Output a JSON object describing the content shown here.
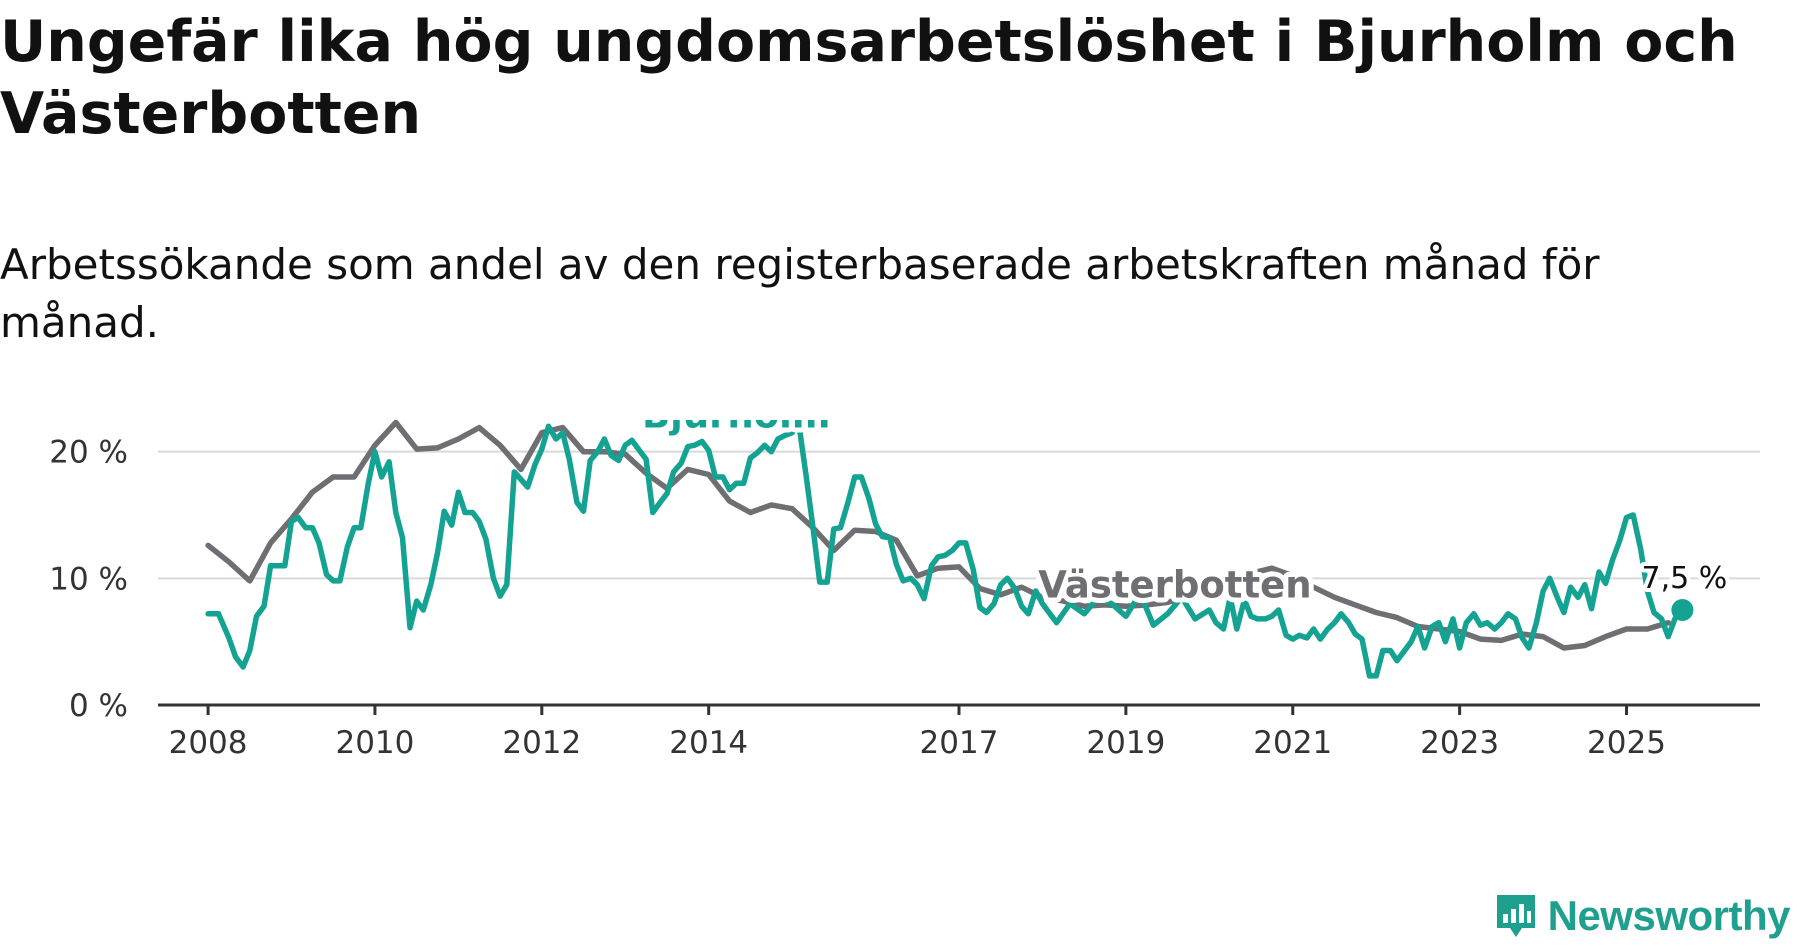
{
  "title": "Ungefär lika hög ungdomsarbetslöshet i Bjurholm och Västerbotten",
  "subtitle": "Arbetssökande som andel av den registerbaserade arbetskraften månad för månad.",
  "brand": {
    "name": "Newsworthy",
    "color": "#1fa08e",
    "icon": "bar-chart-bubble-icon"
  },
  "chart_data": {
    "type": "line",
    "grid": "horizontal",
    "xlim": [
      2007.4,
      2026.6
    ],
    "ylim": [
      0,
      22.5
    ],
    "y_ticks": [
      {
        "value": 0,
        "label": "0 %"
      },
      {
        "value": 10,
        "label": "10 %"
      },
      {
        "value": 20,
        "label": "20 %"
      }
    ],
    "x_ticks": [
      {
        "value": 2008,
        "label": "2008"
      },
      {
        "value": 2010,
        "label": "2010"
      },
      {
        "value": 2012,
        "label": "2012"
      },
      {
        "value": 2014,
        "label": "2014"
      },
      {
        "value": 2017,
        "label": "2017"
      },
      {
        "value": 2019,
        "label": "2019"
      },
      {
        "value": 2021,
        "label": "2021"
      },
      {
        "value": 2023,
        "label": "2023"
      },
      {
        "value": 2025,
        "label": "2025"
      }
    ],
    "end_label": "7,5 %",
    "series": [
      {
        "name": "Västerbotten",
        "color": "#6e6e73",
        "label_x": 2017.95,
        "label_y": 8.5,
        "points": [
          [
            2008.0,
            12.6
          ],
          [
            2008.25,
            11.3
          ],
          [
            2008.5,
            9.8
          ],
          [
            2008.75,
            12.8
          ],
          [
            2009.0,
            14.7
          ],
          [
            2009.25,
            16.8
          ],
          [
            2009.5,
            18.0
          ],
          [
            2009.75,
            18.0
          ],
          [
            2010.0,
            20.5
          ],
          [
            2010.25,
            22.3
          ],
          [
            2010.5,
            20.2
          ],
          [
            2010.75,
            20.3
          ],
          [
            2011.0,
            21.0
          ],
          [
            2011.25,
            21.9
          ],
          [
            2011.5,
            20.5
          ],
          [
            2011.75,
            18.6
          ],
          [
            2012.0,
            21.5
          ],
          [
            2012.25,
            21.9
          ],
          [
            2012.5,
            20.0
          ],
          [
            2012.75,
            20.0
          ],
          [
            2013.0,
            19.8
          ],
          [
            2013.25,
            18.3
          ],
          [
            2013.5,
            17.1
          ],
          [
            2013.75,
            18.6
          ],
          [
            2014.0,
            18.2
          ],
          [
            2014.25,
            16.1
          ],
          [
            2014.5,
            15.2
          ],
          [
            2014.75,
            15.8
          ],
          [
            2015.0,
            15.5
          ],
          [
            2015.25,
            14.0
          ],
          [
            2015.5,
            12.2
          ],
          [
            2015.75,
            13.8
          ],
          [
            2016.0,
            13.7
          ],
          [
            2016.25,
            13.0
          ],
          [
            2016.5,
            10.2
          ],
          [
            2016.75,
            10.8
          ],
          [
            2017.0,
            10.9
          ],
          [
            2017.25,
            9.2
          ],
          [
            2017.5,
            8.7
          ],
          [
            2017.75,
            9.3
          ],
          [
            2018.0,
            8.5
          ],
          [
            2018.25,
            8.2
          ],
          [
            2018.5,
            7.8
          ],
          [
            2018.75,
            7.9
          ],
          [
            2019.0,
            7.8
          ],
          [
            2019.25,
            7.9
          ],
          [
            2019.5,
            8.1
          ],
          [
            2019.75,
            8.6
          ],
          [
            2020.0,
            8.8
          ],
          [
            2020.25,
            9.3
          ],
          [
            2020.5,
            10.4
          ],
          [
            2020.75,
            10.8
          ],
          [
            2021.0,
            10.2
          ],
          [
            2021.25,
            9.3
          ],
          [
            2021.5,
            8.5
          ],
          [
            2021.75,
            7.9
          ],
          [
            2022.0,
            7.3
          ],
          [
            2022.25,
            6.9
          ],
          [
            2022.5,
            6.2
          ],
          [
            2022.75,
            6.0
          ],
          [
            2023.0,
            5.8
          ],
          [
            2023.25,
            5.2
          ],
          [
            2023.5,
            5.1
          ],
          [
            2023.75,
            5.6
          ],
          [
            2024.0,
            5.4
          ],
          [
            2024.25,
            4.5
          ],
          [
            2024.5,
            4.7
          ],
          [
            2024.75,
            5.4
          ],
          [
            2025.0,
            6.0
          ],
          [
            2025.25,
            6.0
          ],
          [
            2025.5,
            6.5
          ]
        ]
      },
      {
        "name": "Bjurholm",
        "color": "#14a392",
        "label_x": 2013.2,
        "label_y": 21.9,
        "end_dot": true,
        "points": [
          [
            2008.0,
            7.2
          ],
          [
            2008.125,
            7.2
          ],
          [
            2008.25,
            5.3
          ],
          [
            2008.33,
            3.8
          ],
          [
            2008.42,
            3.0
          ],
          [
            2008.5,
            4.3
          ],
          [
            2008.58,
            7.0
          ],
          [
            2008.67,
            7.8
          ],
          [
            2008.75,
            11.0
          ],
          [
            2008.92,
            11.0
          ],
          [
            2009.0,
            14.5
          ],
          [
            2009.08,
            14.8
          ],
          [
            2009.17,
            14.0
          ],
          [
            2009.25,
            14.0
          ],
          [
            2009.33,
            12.8
          ],
          [
            2009.42,
            10.3
          ],
          [
            2009.5,
            9.8
          ],
          [
            2009.58,
            9.8
          ],
          [
            2009.67,
            12.5
          ],
          [
            2009.75,
            14.0
          ],
          [
            2009.83,
            14.0
          ],
          [
            2009.92,
            17.5
          ],
          [
            2010.0,
            20.0
          ],
          [
            2010.08,
            18.0
          ],
          [
            2010.17,
            19.2
          ],
          [
            2010.25,
            15.2
          ],
          [
            2010.33,
            13.2
          ],
          [
            2010.42,
            6.1
          ],
          [
            2010.5,
            8.2
          ],
          [
            2010.58,
            7.5
          ],
          [
            2010.67,
            9.5
          ],
          [
            2010.75,
            12.0
          ],
          [
            2010.83,
            15.3
          ],
          [
            2010.92,
            14.2
          ],
          [
            2011.0,
            16.8
          ],
          [
            2011.08,
            15.2
          ],
          [
            2011.17,
            15.2
          ],
          [
            2011.25,
            14.5
          ],
          [
            2011.33,
            13.1
          ],
          [
            2011.42,
            10.0
          ],
          [
            2011.5,
            8.6
          ],
          [
            2011.58,
            9.5
          ],
          [
            2011.67,
            18.4
          ],
          [
            2011.75,
            17.8
          ],
          [
            2011.83,
            17.2
          ],
          [
            2011.92,
            19.0
          ],
          [
            2012.0,
            20.2
          ],
          [
            2012.08,
            22.0
          ],
          [
            2012.17,
            21.0
          ],
          [
            2012.25,
            21.5
          ],
          [
            2012.33,
            19.4
          ],
          [
            2012.42,
            16.0
          ],
          [
            2012.5,
            15.3
          ],
          [
            2012.58,
            19.3
          ],
          [
            2012.67,
            20.0
          ],
          [
            2012.75,
            21.0
          ],
          [
            2012.83,
            19.7
          ],
          [
            2012.92,
            19.3
          ],
          [
            2013.0,
            20.5
          ],
          [
            2013.08,
            20.9
          ],
          [
            2013.17,
            20.1
          ],
          [
            2013.25,
            19.4
          ],
          [
            2013.33,
            15.2
          ],
          [
            2013.42,
            16.0
          ],
          [
            2013.5,
            16.7
          ],
          [
            2013.58,
            18.4
          ],
          [
            2013.67,
            19.1
          ],
          [
            2013.75,
            20.4
          ],
          [
            2013.83,
            20.5
          ],
          [
            2013.92,
            20.8
          ],
          [
            2014.0,
            20.1
          ],
          [
            2014.08,
            18.0
          ],
          [
            2014.17,
            18.0
          ],
          [
            2014.25,
            17.0
          ],
          [
            2014.33,
            17.5
          ],
          [
            2014.42,
            17.5
          ],
          [
            2014.5,
            19.5
          ],
          [
            2014.58,
            19.9
          ],
          [
            2014.67,
            20.5
          ],
          [
            2014.75,
            20.0
          ],
          [
            2014.83,
            21.0
          ],
          [
            2014.92,
            21.3
          ],
          [
            2015.0,
            21.5
          ],
          [
            2015.08,
            22.2
          ],
          [
            2015.17,
            18.0
          ],
          [
            2015.25,
            14.0
          ],
          [
            2015.33,
            9.7
          ],
          [
            2015.42,
            9.7
          ],
          [
            2015.5,
            13.9
          ],
          [
            2015.58,
            14.0
          ],
          [
            2015.67,
            16.0
          ],
          [
            2015.75,
            18.0
          ],
          [
            2015.83,
            18.0
          ],
          [
            2015.92,
            16.3
          ],
          [
            2016.0,
            14.3
          ],
          [
            2016.08,
            13.3
          ],
          [
            2016.17,
            13.2
          ],
          [
            2016.25,
            11.1
          ],
          [
            2016.33,
            9.8
          ],
          [
            2016.42,
            10.0
          ],
          [
            2016.5,
            9.5
          ],
          [
            2016.58,
            8.4
          ],
          [
            2016.67,
            11.0
          ],
          [
            2016.75,
            11.7
          ],
          [
            2016.83,
            11.8
          ],
          [
            2016.92,
            12.2
          ],
          [
            2017.0,
            12.8
          ],
          [
            2017.08,
            12.8
          ],
          [
            2017.17,
            10.7
          ],
          [
            2017.25,
            7.7
          ],
          [
            2017.33,
            7.3
          ],
          [
            2017.42,
            8.0
          ],
          [
            2017.5,
            9.5
          ],
          [
            2017.58,
            10.0
          ],
          [
            2017.67,
            9.2
          ],
          [
            2017.75,
            7.8
          ],
          [
            2017.83,
            7.2
          ],
          [
            2017.92,
            9.0
          ],
          [
            2018.0,
            8.0
          ],
          [
            2018.17,
            6.5
          ],
          [
            2018.33,
            8.0
          ],
          [
            2018.5,
            7.2
          ],
          [
            2018.67,
            8.5
          ],
          [
            2018.83,
            8.0
          ],
          [
            2019.0,
            7.0
          ],
          [
            2019.17,
            8.8
          ],
          [
            2019.33,
            6.3
          ],
          [
            2019.5,
            7.2
          ],
          [
            2019.67,
            8.5
          ],
          [
            2019.83,
            6.8
          ],
          [
            2020.0,
            7.5
          ],
          [
            2020.08,
            6.5
          ],
          [
            2020.17,
            6.0
          ],
          [
            2020.25,
            8.5
          ],
          [
            2020.33,
            6.0
          ],
          [
            2020.42,
            8.3
          ],
          [
            2020.5,
            7.0
          ],
          [
            2020.58,
            6.8
          ],
          [
            2020.67,
            6.8
          ],
          [
            2020.75,
            7.0
          ],
          [
            2020.83,
            7.5
          ],
          [
            2020.92,
            5.5
          ],
          [
            2021.0,
            5.2
          ],
          [
            2021.08,
            5.5
          ],
          [
            2021.17,
            5.3
          ],
          [
            2021.25,
            6.0
          ],
          [
            2021.33,
            5.2
          ],
          [
            2021.42,
            6.0
          ],
          [
            2021.5,
            6.5
          ],
          [
            2021.58,
            7.2
          ],
          [
            2021.67,
            6.5
          ],
          [
            2021.75,
            5.6
          ],
          [
            2021.83,
            5.2
          ],
          [
            2021.92,
            2.3
          ],
          [
            2022.0,
            2.3
          ],
          [
            2022.08,
            4.3
          ],
          [
            2022.17,
            4.3
          ],
          [
            2022.25,
            3.5
          ],
          [
            2022.33,
            4.2
          ],
          [
            2022.42,
            5.0
          ],
          [
            2022.5,
            6.2
          ],
          [
            2022.58,
            4.5
          ],
          [
            2022.67,
            6.2
          ],
          [
            2022.75,
            6.5
          ],
          [
            2022.83,
            5.0
          ],
          [
            2022.92,
            6.8
          ],
          [
            2023.0,
            4.5
          ],
          [
            2023.08,
            6.5
          ],
          [
            2023.17,
            7.2
          ],
          [
            2023.25,
            6.3
          ],
          [
            2023.33,
            6.5
          ],
          [
            2023.42,
            6.0
          ],
          [
            2023.5,
            6.5
          ],
          [
            2023.58,
            7.2
          ],
          [
            2023.67,
            6.8
          ],
          [
            2023.75,
            5.3
          ],
          [
            2023.83,
            4.5
          ],
          [
            2023.92,
            6.5
          ],
          [
            2024.0,
            9.0
          ],
          [
            2024.08,
            10.0
          ],
          [
            2024.17,
            8.5
          ],
          [
            2024.25,
            7.3
          ],
          [
            2024.33,
            9.3
          ],
          [
            2024.42,
            8.5
          ],
          [
            2024.5,
            9.5
          ],
          [
            2024.58,
            7.6
          ],
          [
            2024.67,
            10.5
          ],
          [
            2024.75,
            9.6
          ],
          [
            2024.83,
            11.4
          ],
          [
            2024.92,
            13.0
          ],
          [
            2025.0,
            14.8
          ],
          [
            2025.08,
            15.0
          ],
          [
            2025.17,
            12.3
          ],
          [
            2025.25,
            9.0
          ],
          [
            2025.33,
            7.3
          ],
          [
            2025.42,
            6.8
          ],
          [
            2025.5,
            5.4
          ],
          [
            2025.58,
            6.8
          ],
          [
            2025.67,
            7.5
          ]
        ]
      }
    ]
  }
}
